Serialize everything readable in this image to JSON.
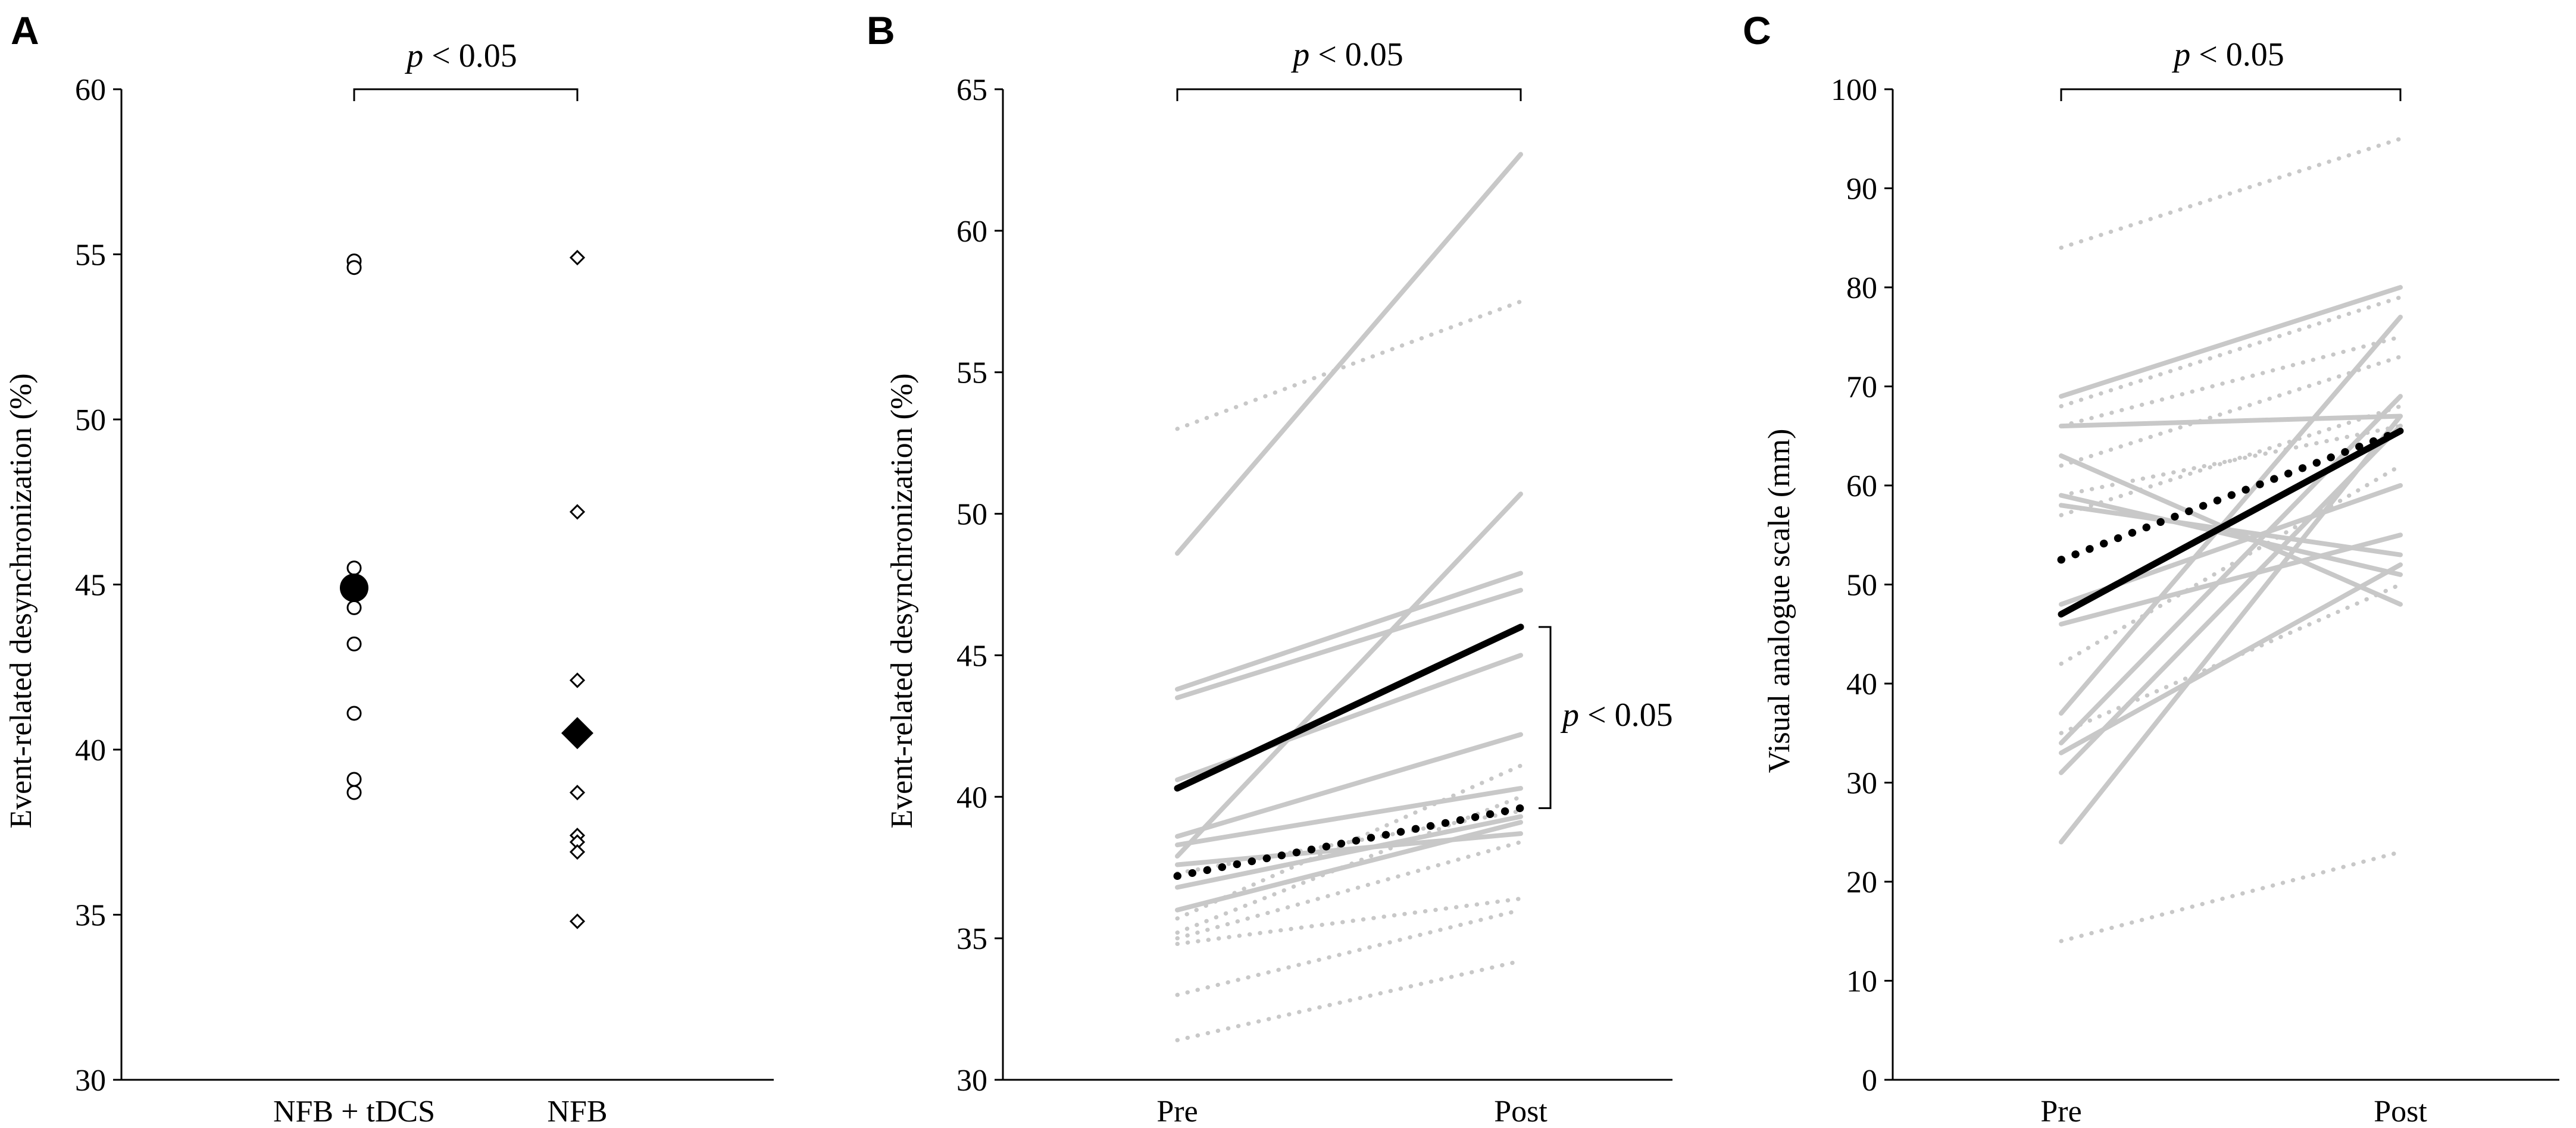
{
  "colors": {
    "individual": "#c8c8c8",
    "mean": "#000000",
    "axis": "#000000",
    "background": "#ffffff"
  },
  "chart_data": [
    {
      "panel": "A",
      "type": "scatter",
      "xlabel": "",
      "ylabel": "Event-related desynchronization (%)",
      "ylim": [
        30,
        60
      ],
      "yticks": [
        30,
        35,
        40,
        45,
        50,
        55,
        60
      ],
      "categories": [
        "NFB + tDCS",
        "NFB"
      ],
      "significance": {
        "label": "p",
        "text": " < 0.05",
        "between": [
          "NFB + tDCS",
          "NFB"
        ]
      },
      "series": [
        {
          "name": "NFB + tDCS individuals",
          "marker": "circle-open",
          "values": [
            54.8,
            54.6,
            45.5,
            44.7,
            44.3,
            43.2,
            41.1,
            39.1,
            38.7
          ]
        },
        {
          "name": "NFB + tDCS mean",
          "marker": "circle-filled",
          "values": [
            44.9
          ]
        },
        {
          "name": "NFB individuals",
          "marker": "diamond-open",
          "values": [
            54.9,
            47.2,
            42.1,
            38.7,
            37.4,
            37.2,
            36.9,
            34.8
          ]
        },
        {
          "name": "NFB mean",
          "marker": "diamond-filled",
          "values": [
            40.5
          ]
        }
      ]
    },
    {
      "panel": "B",
      "type": "line",
      "xlabel": "",
      "ylabel": "Event-related desynchronization (%)",
      "ylim": [
        30,
        65
      ],
      "yticks": [
        30,
        35,
        40,
        45,
        50,
        55,
        60,
        65
      ],
      "categories": [
        "Pre",
        "Post"
      ],
      "significance_top": {
        "label": "p",
        "text": " < 0.05"
      },
      "significance_side": {
        "label": "p",
        "text": " < 0.05",
        "between_post": [
          46.0,
          39.6
        ]
      },
      "series": [
        {
          "name": "NFB + tDCS",
          "style": "solid",
          "role": "individual",
          "lines": [
            [
              48.6,
              62.7
            ],
            [
              43.8,
              47.9
            ],
            [
              43.5,
              47.3
            ],
            [
              40.6,
              45.0
            ],
            [
              38.6,
              42.2
            ],
            [
              38.3,
              40.3
            ],
            [
              37.9,
              50.7
            ],
            [
              37.6,
              38.7
            ],
            [
              36.8,
              39.3
            ],
            [
              36.0,
              39.1
            ]
          ]
        },
        {
          "name": "NFB",
          "style": "dotted",
          "role": "individual",
          "lines": [
            [
              53.0,
              57.5
            ],
            [
              37.3,
              39.5
            ],
            [
              35.7,
              41.1
            ],
            [
              35.2,
              40.0
            ],
            [
              35.0,
              38.4
            ],
            [
              34.8,
              36.4
            ],
            [
              33.0,
              36.0
            ],
            [
              31.4,
              34.2
            ]
          ]
        },
        {
          "name": "NFB + tDCS mean",
          "style": "solid",
          "role": "mean",
          "lines": [
            [
              40.3,
              46.0
            ]
          ]
        },
        {
          "name": "NFB mean",
          "style": "dotted",
          "role": "mean",
          "lines": [
            [
              37.2,
              39.6
            ]
          ]
        }
      ]
    },
    {
      "panel": "C",
      "type": "line",
      "xlabel": "",
      "ylabel": "Visual analogue scale (mm)",
      "ylim": [
        0,
        100
      ],
      "yticks": [
        0,
        10,
        20,
        30,
        40,
        50,
        60,
        70,
        80,
        90,
        100
      ],
      "categories": [
        "Pre",
        "Post"
      ],
      "significance_top": {
        "label": "p",
        "text": " < 0.05"
      },
      "series": [
        {
          "name": "NFB + tDCS",
          "style": "solid",
          "role": "individual",
          "lines": [
            [
              69,
              80
            ],
            [
              66,
              67
            ],
            [
              63,
              48
            ],
            [
              59,
              51
            ],
            [
              58,
              53
            ],
            [
              48,
              60
            ],
            [
              46,
              55
            ],
            [
              37,
              77
            ],
            [
              34,
              69
            ],
            [
              33,
              52
            ],
            [
              31,
              66
            ],
            [
              24,
              67
            ]
          ]
        },
        {
          "name": "NFB",
          "style": "dotted",
          "role": "individual",
          "lines": [
            [
              84,
              95
            ],
            [
              68,
              79
            ],
            [
              66,
              75
            ],
            [
              62,
              73
            ],
            [
              59,
              66
            ],
            [
              57,
              68
            ],
            [
              42,
              62
            ],
            [
              35,
              50
            ],
            [
              14,
              23
            ]
          ]
        },
        {
          "name": "NFB + tDCS mean",
          "style": "solid",
          "role": "mean",
          "lines": [
            [
              47,
              65.5
            ]
          ]
        },
        {
          "name": "NFB mean",
          "style": "dotted",
          "role": "mean",
          "lines": [
            [
              52.5,
              65.5
            ]
          ]
        }
      ]
    }
  ]
}
